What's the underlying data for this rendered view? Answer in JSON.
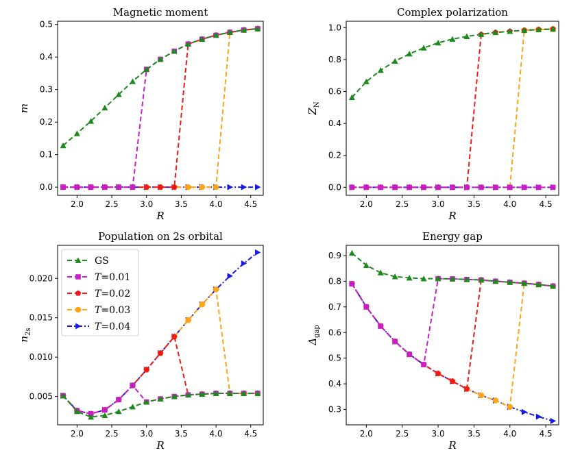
{
  "series_styles": {
    "GS": {
      "color": "#1e8a1e",
      "marker": "triangle-up",
      "dash": "7,4"
    },
    "T0.01": {
      "color": "#c81ec8",
      "marker": "square",
      "dash": "7,4"
    },
    "T0.02": {
      "color": "#f01818",
      "marker": "pentagon",
      "dash": "7,4"
    },
    "T0.03": {
      "color": "#ffa516",
      "marker": "octagon",
      "dash": "7,4"
    },
    "T0.04": {
      "color": "#1919e6",
      "marker": "triangle-right",
      "dash": "7,3,2,3"
    }
  },
  "legend": {
    "entries": [
      {
        "key": "GS",
        "italic": "",
        "text": "GS"
      },
      {
        "key": "T0.01",
        "italic": "T",
        "text": "=0.01"
      },
      {
        "key": "T0.02",
        "italic": "T",
        "text": "=0.02"
      },
      {
        "key": "T0.03",
        "italic": "T",
        "text": "=0.03"
      },
      {
        "key": "T0.04",
        "italic": "T",
        "text": "=0.04"
      }
    ]
  },
  "chart_data": [
    {
      "id": "magnetic",
      "type": "line",
      "title": "Magnetic moment",
      "xlabel": "R",
      "ylabel_main": "m",
      "ylabel_sub": "",
      "xlim": [
        1.72,
        4.68
      ],
      "ylim": [
        -0.025,
        0.51
      ],
      "xticks": [
        "2.0",
        "2.5",
        "3.0",
        "3.5",
        "4.0",
        "4.5"
      ],
      "yticks": [
        "0.0",
        "0.1",
        "0.2",
        "0.3",
        "0.4",
        "0.5"
      ],
      "series": [
        {
          "key": "T0.04",
          "x": [
            1.8,
            2.0,
            2.2,
            2.4,
            2.6,
            2.8,
            3.0,
            3.2,
            3.4,
            3.6,
            3.8,
            4.0,
            4.2,
            4.4,
            4.6
          ],
          "y": [
            0,
            0,
            0,
            0,
            0,
            0,
            0,
            0,
            0,
            0,
            0,
            0,
            0,
            0,
            0
          ]
        },
        {
          "key": "T0.03",
          "x": [
            1.8,
            2.0,
            2.2,
            2.4,
            2.6,
            2.8,
            3.0,
            3.2,
            3.4,
            3.6,
            3.8,
            4.0,
            4.2,
            4.4,
            4.6
          ],
          "y": [
            0,
            0,
            0,
            0,
            0,
            0,
            0,
            0,
            0,
            0,
            0,
            0,
            0.476,
            0.483,
            0.487
          ]
        },
        {
          "key": "T0.02",
          "x": [
            1.8,
            2.0,
            2.2,
            2.4,
            2.6,
            2.8,
            3.0,
            3.2,
            3.4,
            3.6,
            3.8,
            4.0,
            4.2,
            4.4,
            4.6
          ],
          "y": [
            0,
            0,
            0,
            0,
            0,
            0,
            0,
            0,
            0,
            0.44,
            0.455,
            0.467,
            0.476,
            0.483,
            0.487
          ]
        },
        {
          "key": "T0.01",
          "x": [
            1.8,
            2.0,
            2.2,
            2.4,
            2.6,
            2.8,
            3.0,
            3.2,
            3.4,
            3.6,
            3.8,
            4.0,
            4.2,
            4.4,
            4.6
          ],
          "y": [
            0,
            0,
            0,
            0,
            0,
            0,
            0.362,
            0.393,
            0.418,
            0.44,
            0.455,
            0.467,
            0.476,
            0.483,
            0.487
          ]
        },
        {
          "key": "GS",
          "x": [
            1.8,
            2.0,
            2.2,
            2.4,
            2.6,
            2.8,
            3.0,
            3.2,
            3.4,
            3.6,
            3.8,
            4.0,
            4.2,
            4.4,
            4.6
          ],
          "y": [
            0.128,
            0.165,
            0.203,
            0.244,
            0.285,
            0.325,
            0.362,
            0.393,
            0.418,
            0.44,
            0.455,
            0.467,
            0.476,
            0.483,
            0.487
          ]
        }
      ]
    },
    {
      "id": "polarization",
      "type": "line",
      "title": "Complex polarization",
      "xlabel": "R",
      "ylabel_main": "Z",
      "ylabel_sub": "N",
      "xlim": [
        1.72,
        4.68
      ],
      "ylim": [
        -0.05,
        1.04
      ],
      "xticks": [
        "2.0",
        "2.5",
        "3.0",
        "3.5",
        "4.0",
        "4.5"
      ],
      "yticks": [
        "0.0",
        "0.2",
        "0.4",
        "0.6",
        "0.8",
        "1.0"
      ],
      "series": [
        {
          "key": "T0.04",
          "x": [
            1.8,
            2.0,
            2.2,
            2.4,
            2.6,
            2.8,
            3.0,
            3.2,
            3.4,
            3.6,
            3.8,
            4.0,
            4.2,
            4.4,
            4.6
          ],
          "y": [
            0,
            0,
            0,
            0,
            0,
            0,
            0,
            0,
            0,
            0,
            0,
            0,
            0,
            0,
            0
          ]
        },
        {
          "key": "T0.03",
          "x": [
            1.8,
            2.0,
            2.2,
            2.4,
            2.6,
            2.8,
            3.0,
            3.2,
            3.4,
            3.6,
            3.8,
            4.0,
            4.2,
            4.4,
            4.6
          ],
          "y": [
            0,
            0,
            0,
            0,
            0,
            0,
            0,
            0,
            0,
            0,
            0,
            0,
            0.983,
            0.988,
            0.991
          ]
        },
        {
          "key": "T0.02",
          "x": [
            1.8,
            2.0,
            2.2,
            2.4,
            2.6,
            2.8,
            3.0,
            3.2,
            3.4,
            3.6,
            3.8,
            4.0,
            4.2,
            4.4,
            4.6
          ],
          "y": [
            0,
            0,
            0,
            0,
            0,
            0,
            0,
            0,
            0,
            0.958,
            0.97,
            0.977,
            0.983,
            0.988,
            0.991
          ]
        },
        {
          "key": "T0.01",
          "x": [
            1.8,
            2.0,
            2.2,
            2.4,
            2.6,
            2.8,
            3.0,
            3.2,
            3.4,
            3.6,
            3.8,
            4.0,
            4.2,
            4.4,
            4.6
          ],
          "y": [
            0,
            0,
            0,
            0,
            0,
            0,
            0,
            0,
            0,
            0,
            0,
            0,
            0,
            0,
            0
          ]
        },
        {
          "key": "GS",
          "x": [
            1.8,
            2.0,
            2.2,
            2.4,
            2.6,
            2.8,
            3.0,
            3.2,
            3.4,
            3.6,
            3.8,
            4.0,
            4.2,
            4.4,
            4.6
          ],
          "y": [
            0.563,
            0.662,
            0.733,
            0.79,
            0.836,
            0.873,
            0.905,
            0.928,
            0.945,
            0.958,
            0.97,
            0.977,
            0.983,
            0.988,
            0.991
          ]
        }
      ]
    },
    {
      "id": "population",
      "type": "line",
      "title": "Population on 2s orbital",
      "xlabel": "R",
      "ylabel_main": "n",
      "ylabel_sub": "2s",
      "xlim": [
        1.72,
        4.68
      ],
      "ylim": [
        0.0014,
        0.0242
      ],
      "xticks": [
        "2.0",
        "2.5",
        "3.0",
        "3.5",
        "4.0",
        "4.5"
      ],
      "yticks": [
        "0.005",
        "0.010",
        "0.015",
        "0.020"
      ],
      "legend_position": "upper-left",
      "series": [
        {
          "key": "T0.04",
          "x": [
            1.8,
            2.0,
            2.2,
            2.4,
            2.6,
            2.8,
            3.0,
            3.2,
            3.4,
            3.6,
            3.8,
            4.0,
            4.2,
            4.4,
            4.6
          ],
          "y": [
            0.0051,
            0.0032,
            0.0028,
            0.0033,
            0.0046,
            0.0064,
            0.0084,
            0.0105,
            0.0126,
            0.0147,
            0.0167,
            0.0186,
            0.0203,
            0.0219,
            0.0233
          ]
        },
        {
          "key": "T0.03",
          "x": [
            1.8,
            2.0,
            2.2,
            2.4,
            2.6,
            2.8,
            3.0,
            3.2,
            3.4,
            3.6,
            3.8,
            4.0,
            4.2,
            4.4,
            4.6
          ],
          "y": [
            0.0051,
            0.0032,
            0.0028,
            0.0033,
            0.0046,
            0.0064,
            0.0084,
            0.0105,
            0.0126,
            0.0147,
            0.0167,
            0.0186,
            0.0054,
            0.0054,
            0.0054
          ]
        },
        {
          "key": "T0.02",
          "x": [
            1.8,
            2.0,
            2.2,
            2.4,
            2.6,
            2.8,
            3.0,
            3.2,
            3.4,
            3.6,
            3.8,
            4.0,
            4.2,
            4.4,
            4.6
          ],
          "y": [
            0.0051,
            0.0032,
            0.0028,
            0.0033,
            0.0046,
            0.0064,
            0.0084,
            0.0105,
            0.0126,
            0.0052,
            0.0053,
            0.0054,
            0.0054,
            0.0054,
            0.0054
          ]
        },
        {
          "key": "T0.01",
          "x": [
            1.8,
            2.0,
            2.2,
            2.4,
            2.6,
            2.8,
            3.0,
            3.2,
            3.4,
            3.6,
            3.8,
            4.0,
            4.2,
            4.4,
            4.6
          ],
          "y": [
            0.0051,
            0.0032,
            0.0028,
            0.0033,
            0.0046,
            0.0064,
            0.0043,
            0.0047,
            0.005,
            0.0052,
            0.0053,
            0.0054,
            0.0054,
            0.0054,
            0.0054
          ]
        },
        {
          "key": "GS",
          "x": [
            1.8,
            2.0,
            2.2,
            2.4,
            2.6,
            2.8,
            3.0,
            3.2,
            3.4,
            3.6,
            3.8,
            4.0,
            4.2,
            4.4,
            4.6
          ],
          "y": [
            0.0051,
            0.0031,
            0.0024,
            0.0026,
            0.0031,
            0.0037,
            0.0043,
            0.0047,
            0.005,
            0.0052,
            0.0053,
            0.0054,
            0.0054,
            0.0054,
            0.0054
          ]
        }
      ]
    },
    {
      "id": "gap",
      "type": "line",
      "title": "Energy gap",
      "xlabel": "R",
      "ylabel_main": "Δ",
      "ylabel_sub": "gap",
      "xlim": [
        1.72,
        4.68
      ],
      "ylim": [
        0.24,
        0.94
      ],
      "xticks": [
        "2.0",
        "2.5",
        "3.0",
        "3.5",
        "4.0",
        "4.5"
      ],
      "yticks": [
        "0.3",
        "0.4",
        "0.5",
        "0.6",
        "0.7",
        "0.8",
        "0.9"
      ],
      "series": [
        {
          "key": "T0.04",
          "x": [
            1.8,
            2.0,
            2.2,
            2.4,
            2.6,
            2.8,
            3.0,
            3.2,
            3.4,
            3.6,
            3.8,
            4.0,
            4.2,
            4.4,
            4.6
          ],
          "y": [
            0.79,
            0.7,
            0.625,
            0.565,
            0.515,
            0.475,
            0.44,
            0.41,
            0.38,
            0.355,
            0.335,
            0.31,
            0.29,
            0.272,
            0.255
          ]
        },
        {
          "key": "T0.03",
          "x": [
            1.8,
            2.0,
            2.2,
            2.4,
            2.6,
            2.8,
            3.0,
            3.2,
            3.4,
            3.6,
            3.8,
            4.0,
            4.2,
            4.4,
            4.6
          ],
          "y": [
            0.79,
            0.7,
            0.625,
            0.565,
            0.515,
            0.475,
            0.44,
            0.41,
            0.38,
            0.355,
            0.335,
            0.31,
            0.792,
            0.787,
            0.781
          ]
        },
        {
          "key": "T0.02",
          "x": [
            1.8,
            2.0,
            2.2,
            2.4,
            2.6,
            2.8,
            3.0,
            3.2,
            3.4,
            3.6,
            3.8,
            4.0,
            4.2,
            4.4,
            4.6
          ],
          "y": [
            0.79,
            0.7,
            0.625,
            0.565,
            0.515,
            0.475,
            0.44,
            0.41,
            0.38,
            0.805,
            0.8,
            0.796,
            0.792,
            0.787,
            0.781
          ]
        },
        {
          "key": "T0.01",
          "x": [
            1.8,
            2.0,
            2.2,
            2.4,
            2.6,
            2.8,
            3.0,
            3.2,
            3.4,
            3.6,
            3.8,
            4.0,
            4.2,
            4.4,
            4.6
          ],
          "y": [
            0.79,
            0.7,
            0.625,
            0.565,
            0.515,
            0.475,
            0.81,
            0.809,
            0.807,
            0.805,
            0.8,
            0.796,
            0.792,
            0.787,
            0.781
          ]
        },
        {
          "key": "GS",
          "x": [
            1.8,
            2.0,
            2.2,
            2.4,
            2.6,
            2.8,
            3.0,
            3.2,
            3.4,
            3.6,
            3.8,
            4.0,
            4.2,
            4.4,
            4.6
          ],
          "y": [
            0.91,
            0.862,
            0.833,
            0.818,
            0.813,
            0.81,
            0.81,
            0.809,
            0.807,
            0.805,
            0.8,
            0.796,
            0.792,
            0.787,
            0.781
          ]
        }
      ]
    }
  ]
}
